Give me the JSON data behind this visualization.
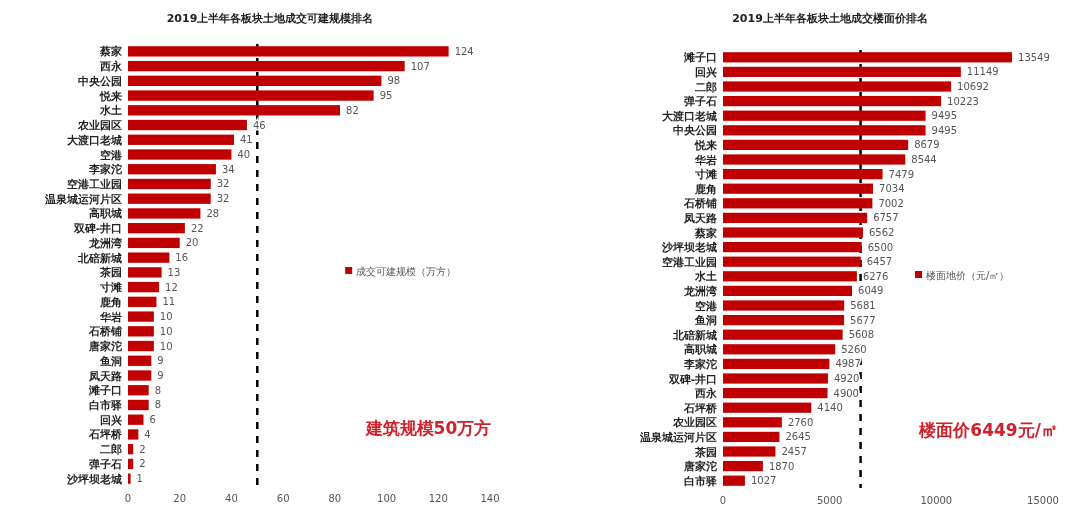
{
  "chart_data": [
    {
      "type": "bar",
      "orientation": "horizontal",
      "title": "2019上半年各板块土地成交可建规模排名",
      "categories": [
        "蔡家",
        "西永",
        "中央公园",
        "悦来",
        "水土",
        "农业园区",
        "大渡口老城",
        "空港",
        "李家沱",
        "空港工业园",
        "温泉城运河片区",
        "高职城",
        "双碑-井口",
        "龙洲湾",
        "北碚新城",
        "茶园",
        "寸滩",
        "鹿角",
        "华岩",
        "石桥铺",
        "唐家沱",
        "鱼洞",
        "凤天路",
        "滩子口",
        "白市驿",
        "回兴",
        "石坪桥",
        "二郎",
        "弹子石",
        "沙坪坝老城"
      ],
      "series": [
        {
          "name": "成交可建规模（万方）",
          "color": "#c00000",
          "values": [
            124,
            107,
            98,
            95,
            82,
            46,
            41,
            40,
            34,
            32,
            32,
            28,
            22,
            20,
            16,
            13,
            12,
            11,
            10,
            10,
            10,
            9,
            9,
            8,
            8,
            6,
            4,
            2,
            2,
            1
          ]
        }
      ],
      "data_labels": true,
      "xlim": [
        0,
        140
      ],
      "xticks": [
        0,
        20,
        40,
        60,
        80,
        100,
        120,
        140
      ],
      "grid": false,
      "legend": "right",
      "ref_lines": [
        {
          "axis": "x",
          "value": 50,
          "color": "#000000",
          "line_style": "dashed"
        }
      ],
      "annotations": [
        "建筑规模50万方"
      ]
    },
    {
      "type": "bar",
      "orientation": "horizontal",
      "title": "2019上半年各板块土地成交楼面价排名",
      "categories": [
        "滩子口",
        "回兴",
        "二郎",
        "弹子石",
        "大渡口老城",
        "中央公园",
        "悦来",
        "华岩",
        "寸滩",
        "鹿角",
        "石桥铺",
        "凤天路",
        "蔡家",
        "沙坪坝老城",
        "空港工业园",
        "水土",
        "龙洲湾",
        "空港",
        "鱼洞",
        "北碚新城",
        "高职城",
        "李家沱",
        "双碑-井口",
        "西永",
        "石坪桥",
        "农业园区",
        "温泉城运河片区",
        "茶园",
        "唐家沱",
        "白市驿"
      ],
      "series": [
        {
          "name": "楼面地价（元/㎡）",
          "color": "#c00000",
          "values": [
            13549,
            11149,
            10692,
            10223,
            9495,
            9495,
            8679,
            8544,
            7479,
            7034,
            7002,
            6757,
            6562,
            6500,
            6457,
            6276,
            6049,
            5681,
            5677,
            5608,
            5260,
            4987,
            4920,
            4900,
            4140,
            2760,
            2645,
            2457,
            1870,
            1027
          ]
        }
      ],
      "data_labels": true,
      "xlim": [
        0,
        15000
      ],
      "xticks": [
        0,
        5000,
        10000,
        15000
      ],
      "grid": false,
      "legend": "right",
      "ref_lines": [
        {
          "axis": "x",
          "value": 6449,
          "color": "#000000",
          "line_style": "dashed"
        }
      ],
      "annotations": [
        "楼面价6449元/㎡"
      ]
    }
  ]
}
